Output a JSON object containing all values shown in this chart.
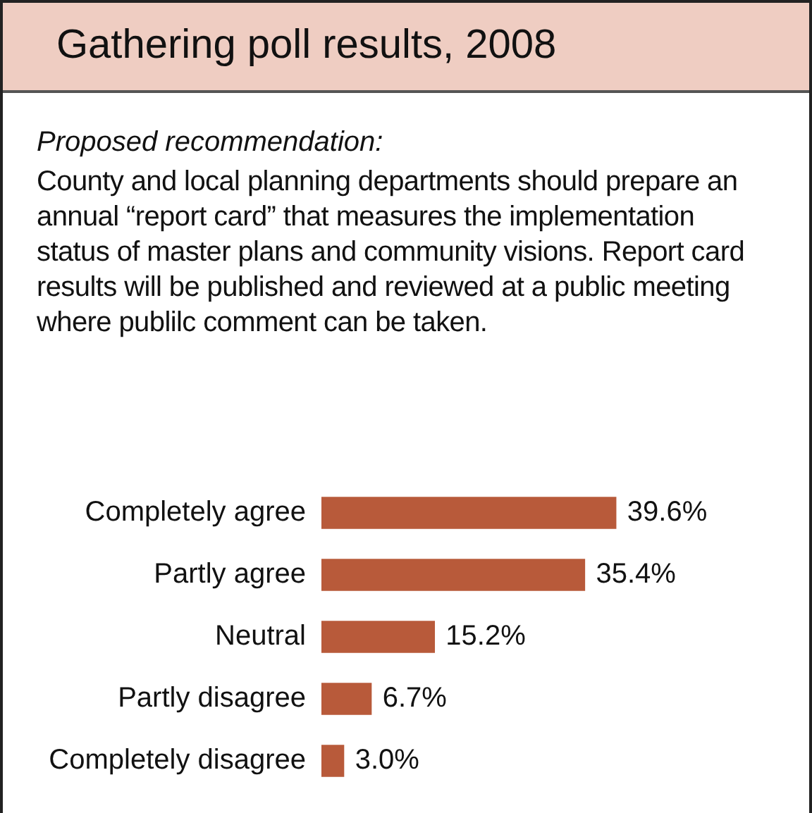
{
  "chart_data": {
    "type": "bar",
    "orientation": "horizontal",
    "title": "Gathering poll results, 2008",
    "subtitle": "Proposed recommendation:",
    "annotations": [
      "County and local planning departments should prepare an annual “report card” that measures the implementation status of master plans and community visions. Report card results will be published and reviewed at a public meeting where publilc comment can be taken."
    ],
    "categories": [
      "Completely agree",
      "Partly agree",
      "Neutral",
      "Partly disagree",
      "Completely disagree"
    ],
    "values": [
      39.6,
      35.4,
      15.2,
      6.7,
      3.0
    ],
    "value_labels": [
      "39.6%",
      "35.4%",
      "15.2%",
      "6.7%",
      "3.0%"
    ],
    "color": "#b85a3a",
    "tick_labels": "y"
  }
}
